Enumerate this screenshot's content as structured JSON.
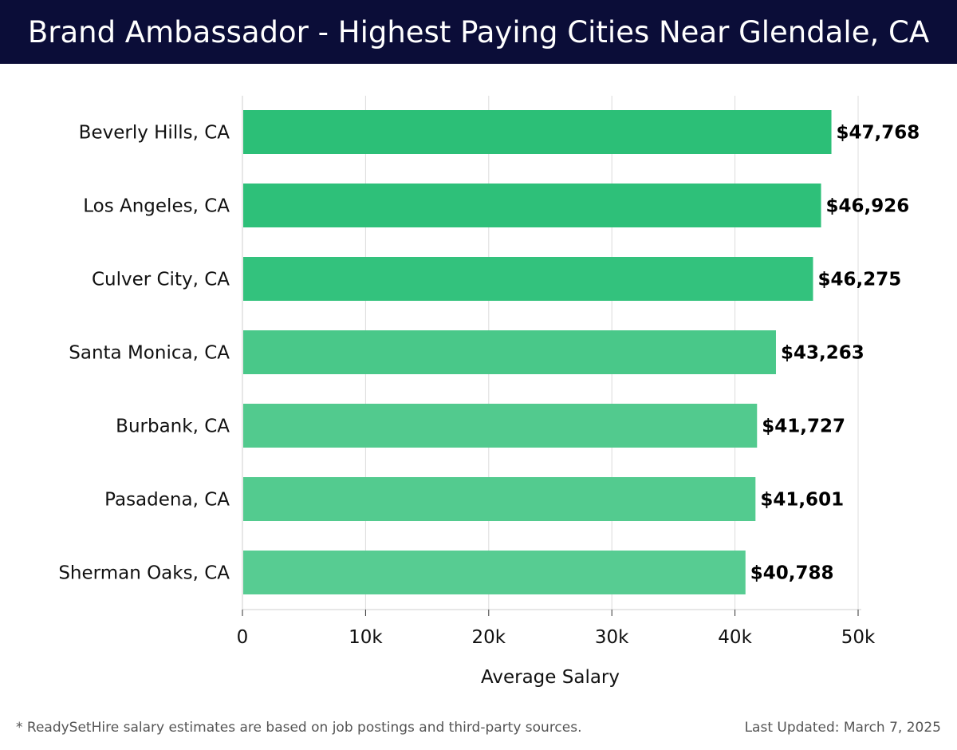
{
  "header": {
    "title": "Brand Ambassador - Highest Paying Cities Near Glendale, CA"
  },
  "chart_data": {
    "type": "bar",
    "orientation": "horizontal",
    "title": "Brand Ambassador - Highest Paying Cities Near Glendale, CA",
    "xlabel": "Average Salary",
    "ylabel": "",
    "xlim": [
      0,
      50000
    ],
    "grid": true,
    "categories": [
      "Beverly Hills, CA",
      "Los Angeles, CA",
      "Culver City, CA",
      "Santa Monica, CA",
      "Burbank, CA",
      "Pasadena, CA",
      "Sherman Oaks, CA"
    ],
    "values": [
      47768,
      46926,
      46275,
      43263,
      41727,
      41601,
      40788
    ],
    "value_labels": [
      "$47,768",
      "$46,926",
      "$46,275",
      "$43,263",
      "$41,727",
      "$41,601",
      "$40,788"
    ],
    "x_ticks": [
      0,
      10000,
      20000,
      30000,
      40000,
      50000
    ],
    "x_tick_labels": [
      "0",
      "10k",
      "20k",
      "30k",
      "40k",
      "50k"
    ],
    "bar_colors": [
      "#2cbf77",
      "#2ec079",
      "#33c27d",
      "#49c889",
      "#52ca8e",
      "#53cb8f",
      "#57cc92"
    ]
  },
  "footer": {
    "note": "* ReadySetHire salary estimates are based on job postings and third-party sources.",
    "updated": "Last Updated: March 7, 2025"
  }
}
